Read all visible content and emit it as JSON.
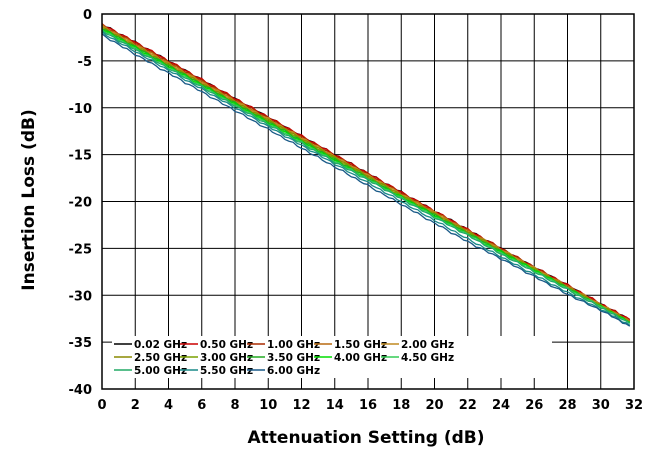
{
  "chart_data": {
    "type": "line",
    "title": "",
    "xlabel": "Attenuation Setting (dB)",
    "ylabel": "Insertion Loss (dB)",
    "xlim": [
      0,
      32
    ],
    "ylim": [
      -40,
      0
    ],
    "x_ticks": [
      "0",
      "2",
      "4",
      "6",
      "8",
      "10",
      "12",
      "14",
      "16",
      "18",
      "20",
      "22",
      "24",
      "26",
      "28",
      "30",
      "32"
    ],
    "y_ticks": [
      "0",
      "-5",
      "-10",
      "-15",
      "-20",
      "-25",
      "-30",
      "-35",
      "-40"
    ],
    "grid": true,
    "legend_position": "bottom-left inside plot",
    "x": [
      0,
      2,
      4,
      6,
      8,
      10,
      12,
      14,
      16,
      18,
      20,
      22,
      24,
      26,
      28,
      30,
      31.75
    ],
    "series": [
      {
        "name": "0.02 GHz",
        "color": "#000000",
        "values": [
          -1.1,
          -3.0,
          -5.0,
          -7.0,
          -9.0,
          -11.0,
          -13.0,
          -15.0,
          -17.0,
          -19.0,
          -21.0,
          -23.0,
          -25.0,
          -27.0,
          -28.9,
          -30.9,
          -32.6
        ]
      },
      {
        "name": "0.50 GHz",
        "color": "#cc0000",
        "values": [
          -1.1,
          -3.0,
          -5.0,
          -7.0,
          -9.0,
          -11.0,
          -13.0,
          -15.0,
          -17.0,
          -19.0,
          -21.0,
          -23.0,
          -25.0,
          -27.0,
          -28.9,
          -30.9,
          -32.6
        ]
      },
      {
        "name": "1.00 GHz",
        "color": "#aa2a00",
        "values": [
          -1.2,
          -3.1,
          -5.1,
          -7.1,
          -9.1,
          -11.1,
          -13.1,
          -15.1,
          -17.1,
          -19.1,
          -21.1,
          -23.1,
          -25.0,
          -27.0,
          -29.0,
          -31.0,
          -32.7
        ]
      },
      {
        "name": "1.50 GHz",
        "color": "#b86a10",
        "values": [
          -1.2,
          -3.2,
          -5.2,
          -7.2,
          -9.2,
          -11.2,
          -13.2,
          -15.2,
          -17.2,
          -19.2,
          -21.1,
          -23.1,
          -25.1,
          -27.1,
          -29.0,
          -31.0,
          -32.7
        ]
      },
      {
        "name": "2.00 GHz",
        "color": "#c08a20",
        "values": [
          -1.3,
          -3.3,
          -5.3,
          -7.3,
          -9.3,
          -11.2,
          -13.2,
          -15.2,
          -17.2,
          -19.2,
          -21.2,
          -23.2,
          -25.1,
          -27.1,
          -29.1,
          -31.0,
          -32.8
        ]
      },
      {
        "name": "2.50 GHz",
        "color": "#8a8a00",
        "values": [
          -1.4,
          -3.4,
          -5.4,
          -7.4,
          -9.4,
          -11.3,
          -13.3,
          -15.3,
          -17.3,
          -19.3,
          -21.3,
          -23.2,
          -25.2,
          -27.2,
          -29.1,
          -31.1,
          -32.8
        ]
      },
      {
        "name": "3.00 GHz",
        "color": "#7aa000",
        "values": [
          -1.5,
          -3.5,
          -5.5,
          -7.5,
          -9.5,
          -11.4,
          -13.4,
          -15.4,
          -17.4,
          -19.4,
          -21.4,
          -23.3,
          -25.3,
          -27.2,
          -29.2,
          -31.1,
          -32.9
        ]
      },
      {
        "name": "3.50 GHz",
        "color": "#22aa22",
        "values": [
          -1.5,
          -3.5,
          -5.5,
          -7.5,
          -9.5,
          -11.5,
          -13.5,
          -15.5,
          -17.5,
          -19.5,
          -21.4,
          -23.4,
          -25.3,
          -27.3,
          -29.2,
          -31.2,
          -32.9
        ]
      },
      {
        "name": "4.00 GHz",
        "color": "#00dd00",
        "values": [
          -1.6,
          -3.6,
          -5.6,
          -7.6,
          -9.6,
          -11.6,
          -13.6,
          -15.6,
          -17.6,
          -19.5,
          -21.5,
          -23.5,
          -25.4,
          -27.3,
          -29.3,
          -31.2,
          -32.9
        ]
      },
      {
        "name": "4.50 GHz",
        "color": "#33cc55",
        "values": [
          -1.7,
          -3.7,
          -5.7,
          -7.7,
          -9.7,
          -11.7,
          -13.7,
          -15.7,
          -17.6,
          -19.6,
          -21.6,
          -23.5,
          -25.5,
          -27.4,
          -29.3,
          -31.2,
          -33.0
        ]
      },
      {
        "name": "5.00 GHz",
        "color": "#22aa66",
        "values": [
          -1.8,
          -3.8,
          -5.8,
          -7.8,
          -9.8,
          -11.8,
          -13.8,
          -15.8,
          -17.7,
          -19.7,
          -21.7,
          -23.6,
          -25.6,
          -27.5,
          -29.4,
          -31.3,
          -33.0
        ]
      },
      {
        "name": "5.50 GHz",
        "color": "#1a8a88",
        "values": [
          -2.0,
          -4.0,
          -6.0,
          -8.0,
          -10.0,
          -12.0,
          -14.0,
          -16.0,
          -18.0,
          -20.0,
          -22.0,
          -24.0,
          -25.9,
          -27.8,
          -29.7,
          -31.5,
          -33.2
        ]
      },
      {
        "name": "6.00 GHz",
        "color": "#1a5a88",
        "values": [
          -2.2,
          -4.3,
          -6.3,
          -8.3,
          -10.3,
          -12.3,
          -14.3,
          -16.3,
          -18.3,
          -20.3,
          -22.3,
          -24.3,
          -26.1,
          -28.0,
          -29.9,
          -31.6,
          -33.3
        ]
      }
    ]
  }
}
